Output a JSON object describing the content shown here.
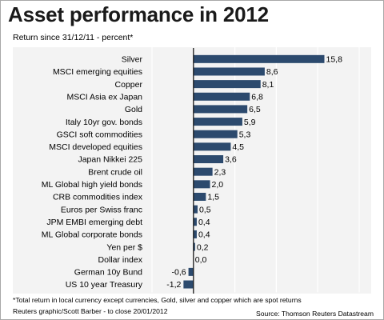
{
  "header": {
    "title": "Asset performance in 2012",
    "subtitle": "Return since 31/12/11 - percent*"
  },
  "footer": {
    "footnote": "*Total return in local currency except currencies, Gold, silver and copper which are spot returns",
    "credit": "Reuters graphic/Scott Barber - to close 20/01/2012",
    "source": "Source: Thomson Reuters Datastream"
  },
  "colors": {
    "bar": "#2c4a6e",
    "zero_line": "#1a1a1a",
    "grid": "#ffffff",
    "plot_background": "#f3f3f3"
  },
  "chart_data": {
    "type": "bar",
    "orientation": "horizontal",
    "title": "Asset performance in 2012",
    "subtitle": "Return since 31/12/11 - percent*",
    "categories": [
      "Silver",
      "MSCI emerging equities",
      "Copper",
      "MSCI Asia ex Japan",
      "Gold",
      "Italy 10yr gov. bonds",
      "GSCI soft commodities",
      "MSCI developed equities",
      "Japan Nikkei 225",
      "Brent crude oil",
      "ML Global high yield bonds",
      "CRB commodities index",
      "Euros per Swiss franc",
      "JPM EMBI emerging debt",
      "ML Global corporate bonds",
      "Yen per $",
      "Dollar index",
      "German 10y Bund",
      "US 10 year Treasury"
    ],
    "values": [
      15.8,
      8.6,
      8.1,
      6.8,
      6.5,
      5.9,
      5.3,
      4.5,
      3.6,
      2.3,
      2.0,
      1.5,
      0.5,
      0.4,
      0.4,
      0.2,
      0.0,
      -0.6,
      -1.2
    ],
    "value_labels": [
      "15,8",
      "8,6",
      "8,1",
      "6,8",
      "6,5",
      "5,9",
      "5,3",
      "4,5",
      "3,6",
      "2,3",
      "2,0",
      "1,5",
      "0,5",
      "0,4",
      "0,4",
      "0,2",
      "0,0",
      "-0,6",
      "-1,2"
    ],
    "xlim": [
      -5,
      20
    ],
    "xticks": [
      -5,
      0,
      5,
      10,
      15,
      20
    ],
    "xtick_labels": [
      "-5",
      "0",
      "5",
      "10",
      "15",
      "20"
    ],
    "xlabel": "",
    "ylabel": "",
    "grid": true,
    "legend": "none"
  }
}
